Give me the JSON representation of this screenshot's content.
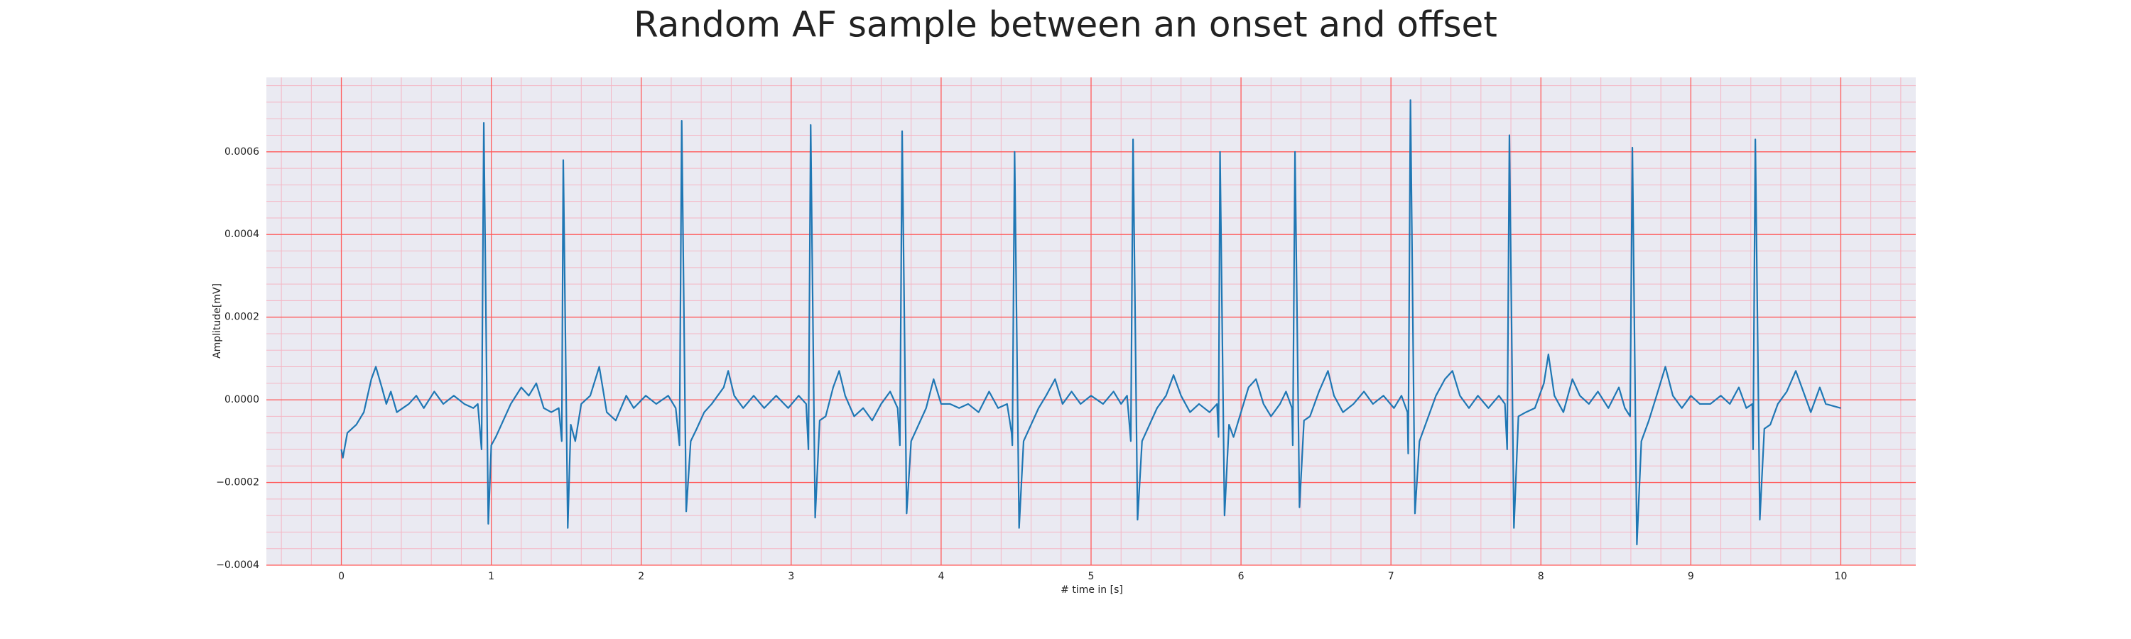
{
  "chart_data": {
    "type": "line",
    "title": "Random AF sample between an onset and offset",
    "xlabel": "# time in [s]",
    "ylabel": "Amplitude[mV]",
    "color": "#1f77b4",
    "background": "#eaeaf2",
    "grid": true,
    "grid_color": "#ff5a5a",
    "minor_grid_color": "#f4b6c4",
    "xlim": [
      -0.5,
      10.5
    ],
    "ylim": [
      -0.0004,
      0.00078
    ],
    "xticks": [
      0,
      1,
      2,
      3,
      4,
      5,
      6,
      7,
      8,
      9,
      10
    ],
    "yticks": [
      {
        "value": -0.0004,
        "label": "−0.0004"
      },
      {
        "value": -0.0002,
        "label": "−0.0002"
      },
      {
        "value": 0,
        "label": "0.0000"
      },
      {
        "value": 0.0002,
        "label": "0.0002"
      },
      {
        "value": 0.0004,
        "label": "0.0004"
      },
      {
        "value": 0.0006,
        "label": "0.0006"
      }
    ],
    "xminorticks": [
      -0.4,
      -0.2,
      0.2,
      0.4,
      0.6,
      0.8,
      1.2,
      1.4,
      1.6,
      1.8,
      2.2,
      2.4,
      2.6,
      2.8,
      3.2,
      3.4,
      3.6,
      3.8,
      4.2,
      4.4,
      4.6,
      4.8,
      5.2,
      5.4,
      5.6,
      5.8,
      6.2,
      6.4,
      6.6,
      6.8,
      7.2,
      7.4,
      7.6,
      7.8,
      8.2,
      8.4,
      8.6,
      8.8,
      9.2,
      9.4,
      9.6,
      9.8,
      10.2,
      10.4
    ],
    "yminorticks": [
      -0.00036,
      -0.00032,
      -0.00028,
      -0.00024,
      -0.00016,
      -0.00012,
      -8e-05,
      -4e-05,
      4e-05,
      8e-05,
      0.00012,
      0.00016,
      0.00024,
      0.00028,
      0.00032,
      0.00036,
      0.00044,
      0.00048,
      0.00052,
      0.00056,
      0.00064,
      0.00068,
      0.00072,
      0.00076
    ],
    "x": [
      0,
      0.01,
      0.04,
      0.1,
      0.15,
      0.2,
      0.23,
      0.27,
      0.3,
      0.33,
      0.37,
      0.45,
      0.5,
      0.55,
      0.62,
      0.68,
      0.75,
      0.82,
      0.88,
      0.91,
      0.935,
      0.95,
      0.98,
      1.0,
      1.03,
      1.08,
      1.13,
      1.2,
      1.25,
      1.3,
      1.35,
      1.4,
      1.45,
      1.47,
      1.48,
      1.51,
      1.53,
      1.56,
      1.6,
      1.66,
      1.72,
      1.77,
      1.83,
      1.9,
      1.95,
      2.03,
      2.1,
      2.18,
      2.23,
      2.255,
      2.27,
      2.3,
      2.33,
      2.37,
      2.42,
      2.47,
      2.55,
      2.58,
      2.62,
      2.68,
      2.75,
      2.82,
      2.9,
      2.98,
      3.05,
      3.1,
      3.115,
      3.13,
      3.16,
      3.19,
      3.23,
      3.28,
      3.32,
      3.36,
      3.42,
      3.48,
      3.54,
      3.6,
      3.66,
      3.71,
      3.725,
      3.74,
      3.77,
      3.8,
      3.85,
      3.9,
      3.95,
      4.0,
      4.06,
      4.12,
      4.18,
      4.25,
      4.32,
      4.38,
      4.44,
      4.47,
      4.475,
      4.49,
      4.52,
      4.55,
      4.6,
      4.65,
      4.7,
      4.76,
      4.81,
      4.87,
      4.93,
      5.0,
      5.08,
      5.15,
      5.2,
      5.24,
      5.265,
      5.28,
      5.31,
      5.34,
      5.39,
      5.44,
      5.5,
      5.55,
      5.6,
      5.66,
      5.72,
      5.79,
      5.84,
      5.85,
      5.86,
      5.89,
      5.92,
      5.95,
      6.0,
      6.05,
      6.1,
      6.15,
      6.2,
      6.26,
      6.3,
      6.34,
      6.345,
      6.36,
      6.39,
      6.42,
      6.46,
      6.52,
      6.58,
      6.62,
      6.68,
      6.75,
      6.82,
      6.88,
      6.95,
      7.02,
      7.07,
      7.11,
      7.115,
      7.13,
      7.16,
      7.19,
      7.24,
      7.3,
      7.36,
      7.41,
      7.46,
      7.52,
      7.58,
      7.65,
      7.72,
      7.76,
      7.775,
      7.79,
      7.82,
      7.85,
      7.9,
      7.96,
      8.02,
      8.05,
      8.09,
      8.15,
      8.21,
      8.26,
      8.32,
      8.38,
      8.45,
      8.52,
      8.56,
      8.595,
      8.61,
      8.64,
      8.67,
      8.72,
      8.78,
      8.83,
      8.88,
      8.94,
      9.0,
      9.06,
      9.13,
      9.2,
      9.26,
      9.32,
      9.37,
      9.41,
      9.415,
      9.43,
      9.46,
      9.49,
      9.53,
      9.58,
      9.64,
      9.7,
      9.75,
      9.8,
      9.86,
      9.9,
      10.0
    ],
    "values": [
      -0.00012,
      -0.00014,
      -8e-05,
      -6e-05,
      -3e-05,
      5e-05,
      8e-05,
      3e-05,
      -1e-05,
      2e-05,
      -3e-05,
      -1e-05,
      1e-05,
      -2e-05,
      2e-05,
      -1e-05,
      1e-05,
      -1e-05,
      -2e-05,
      -1e-05,
      -0.00012,
      0.00067,
      -0.0003,
      -0.00011,
      -9e-05,
      -5e-05,
      -1e-05,
      3e-05,
      1e-05,
      4e-05,
      -2e-05,
      -3e-05,
      -2e-05,
      -0.0001,
      0.00058,
      -0.00031,
      -6e-05,
      -0.0001,
      -1e-05,
      1e-05,
      8e-05,
      -3e-05,
      -5e-05,
      1e-05,
      -2e-05,
      1e-05,
      -1e-05,
      1e-05,
      -2e-05,
      -0.00011,
      0.000675,
      -0.00027,
      -0.0001,
      -7e-05,
      -3e-05,
      -1e-05,
      3e-05,
      7e-05,
      1e-05,
      -2e-05,
      1e-05,
      -2e-05,
      1e-05,
      -2e-05,
      1e-05,
      -1e-05,
      -0.00012,
      0.000665,
      -0.000285,
      -5e-05,
      -4e-05,
      3e-05,
      7e-05,
      1e-05,
      -4e-05,
      -2e-05,
      -5e-05,
      -1e-05,
      2e-05,
      -2e-05,
      -0.00011,
      0.00065,
      -0.000275,
      -0.0001,
      -6e-05,
      -2e-05,
      5e-05,
      -1e-05,
      -1e-05,
      -2e-05,
      -1e-05,
      -3e-05,
      2e-05,
      -2e-05,
      -1e-05,
      -8e-05,
      -0.00011,
      0.0006,
      -0.00031,
      -0.0001,
      -6e-05,
      -2e-05,
      1e-05,
      5e-05,
      -1e-05,
      2e-05,
      -1e-05,
      1e-05,
      -1e-05,
      2e-05,
      -1e-05,
      1e-05,
      -0.0001,
      0.00063,
      -0.00029,
      -0.0001,
      -6e-05,
      -2e-05,
      1e-05,
      6e-05,
      1e-05,
      -3e-05,
      -1e-05,
      -3e-05,
      -1e-05,
      -9e-05,
      0.0006,
      -0.00028,
      -6e-05,
      -9e-05,
      -3e-05,
      3e-05,
      5e-05,
      -1e-05,
      -4e-05,
      -1e-05,
      2e-05,
      -2e-05,
      -0.00011,
      0.0006,
      -0.00026,
      -5e-05,
      -4e-05,
      2e-05,
      7e-05,
      1e-05,
      -3e-05,
      -1e-05,
      2e-05,
      -1e-05,
      1e-05,
      -2e-05,
      1e-05,
      -3e-05,
      -0.00013,
      0.000725,
      -0.000275,
      -0.0001,
      -5e-05,
      1e-05,
      5e-05,
      7e-05,
      1e-05,
      -2e-05,
      1e-05,
      -2e-05,
      1e-05,
      -1e-05,
      -0.00012,
      0.00064,
      -0.00031,
      -4e-05,
      -3e-05,
      -2e-05,
      4e-05,
      0.00011,
      1e-05,
      -3e-05,
      5e-05,
      1e-05,
      -1e-05,
      2e-05,
      -2e-05,
      3e-05,
      -2e-05,
      -4e-05,
      0.00061,
      -0.00035,
      -0.0001,
      -5e-05,
      2e-05,
      8e-05,
      1e-05,
      -2e-05,
      1e-05,
      -1e-05,
      -1e-05,
      1e-05,
      -1e-05,
      3e-05,
      -2e-05,
      -1e-05,
      -0.00012,
      0.00063,
      -0.00029,
      -7e-05,
      -6e-05,
      -1e-05,
      2e-05,
      7e-05,
      2e-05,
      -3e-05,
      3e-05,
      -1e-05,
      -2e-05
    ]
  }
}
